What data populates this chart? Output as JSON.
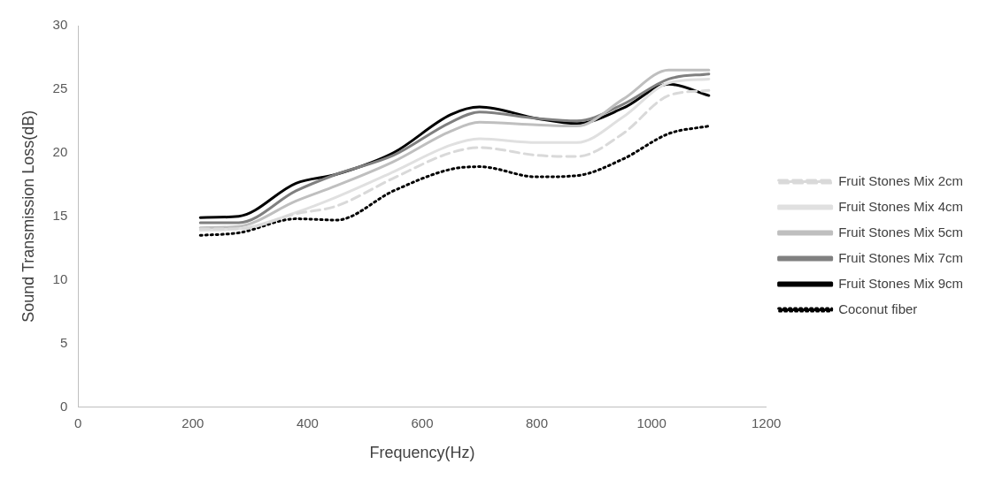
{
  "chart_data": {
    "type": "line",
    "xlabel": "Frequency(Hz)",
    "ylabel": "Sound Transmission Loss(dB)",
    "x": [
      213,
      280,
      380,
      450,
      550,
      650,
      700,
      800,
      870,
      950,
      1030,
      1100
    ],
    "xlim": [
      0,
      1200
    ],
    "xticks": [
      0,
      200,
      400,
      600,
      800,
      1000,
      1200
    ],
    "ylim": [
      0,
      30
    ],
    "yticks": [
      0,
      5,
      10,
      15,
      20,
      25,
      30
    ],
    "grid": false,
    "legend": "right",
    "marker": "none",
    "series": [
      {
        "name": "Fruit Stones Mix 2cm",
        "color": "#d9d9d9",
        "line_style": "dashed",
        "values": [
          14.0,
          14.0,
          15.2,
          15.8,
          18.0,
          20.0,
          20.4,
          19.8,
          19.7,
          21.5,
          24.5,
          24.9
        ]
      },
      {
        "name": "Fruit Stones Mix 4cm",
        "color": "#e0e0e0",
        "line_style": "solid",
        "values": [
          13.9,
          14.0,
          15.3,
          16.5,
          18.5,
          20.6,
          21.1,
          20.8,
          20.8,
          22.8,
          25.5,
          25.8
        ]
      },
      {
        "name": "Fruit Stones Mix 5cm",
        "color": "#bfbfbf",
        "line_style": "solid",
        "values": [
          14.1,
          14.2,
          16.2,
          17.4,
          19.3,
          21.7,
          22.4,
          22.2,
          22.1,
          24.2,
          26.5,
          26.5
        ]
      },
      {
        "name": "Fruit Stones Mix 7cm",
        "color": "#808080",
        "line_style": "solid",
        "values": [
          14.5,
          14.5,
          17.0,
          18.3,
          19.8,
          22.4,
          23.2,
          22.7,
          22.5,
          23.8,
          25.8,
          26.2
        ]
      },
      {
        "name": "Fruit Stones Mix 9cm",
        "color": "#000000",
        "line_style": "solid",
        "values": [
          14.9,
          15.0,
          17.6,
          18.3,
          20.0,
          23.0,
          23.6,
          22.7,
          22.3,
          23.5,
          25.4,
          24.5
        ]
      },
      {
        "name": "Coconut fiber",
        "color": "#000000",
        "line_style": "dotted",
        "values": [
          13.5,
          13.7,
          14.8,
          14.7,
          17.0,
          18.7,
          18.9,
          18.1,
          18.2,
          19.5,
          21.5,
          22.1
        ]
      }
    ]
  }
}
